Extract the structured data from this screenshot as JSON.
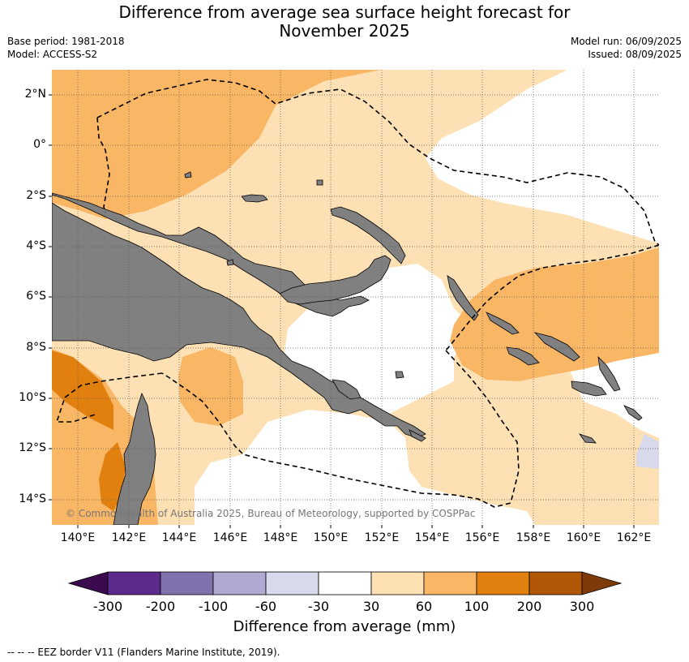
{
  "header": {
    "title_line1": "Difference from average sea surface height forecast for",
    "title_line2": "November 2025",
    "base_period": "Base period: 1981-2018",
    "model": "Model: ACCESS-S2",
    "model_run": "Model run: 06/09/2025",
    "issued": "Issued: 08/09/2025"
  },
  "map": {
    "lat_labels": [
      "2°N",
      "0°",
      "2°S",
      "4°S",
      "6°S",
      "8°S",
      "10°S",
      "12°S",
      "14°S"
    ],
    "lon_labels": [
      "140°E",
      "142°E",
      "144°E",
      "146°E",
      "148°E",
      "150°E",
      "152°E",
      "154°E",
      "156°E",
      "158°E",
      "160°E",
      "162°E"
    ],
    "copyright": "© Commonwealth of Australia 2025, Bureau of Meteorology, supported by COSPPac",
    "land_color": "#808080",
    "grid": true
  },
  "colorbar": {
    "tick_labels": [
      "-300",
      "-200",
      "-100",
      "-60",
      "-30",
      "30",
      "60",
      "100",
      "200",
      "300"
    ],
    "colors": [
      "#3b0a4f",
      "#5b2a8c",
      "#8073ad",
      "#b0a9d2",
      "#d8d9ea",
      "#ffffff",
      "#fde0b4",
      "#f9b664",
      "#e2800f",
      "#b25706",
      "#7f3a09"
    ],
    "label": "Difference from average (mm)"
  },
  "footnote": "--  --  -- EEZ border V11 (Flanders Marine Institute, 2019)."
}
